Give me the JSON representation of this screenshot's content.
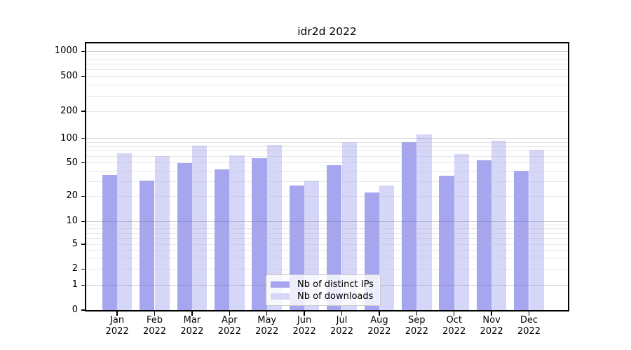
{
  "figure": {
    "background": "#ffffff"
  },
  "chart_data": {
    "type": "bar",
    "title": "idr2d 2022",
    "categories": [
      "Jan",
      "Feb",
      "Mar",
      "Apr",
      "May",
      "Jun",
      "Jul",
      "Aug",
      "Sep",
      "Oct",
      "Nov",
      "Dec"
    ],
    "x_year_label": "2022",
    "series": [
      {
        "name": "Nb of distinct IPs",
        "color": "#a5a5f0",
        "values": [
          36,
          31,
          50,
          42,
          57,
          27,
          47,
          22,
          90,
          35,
          54,
          40
        ]
      },
      {
        "name": "Nb of downloads",
        "color": "#d6d6f8",
        "values": [
          66,
          61,
          81,
          62,
          83,
          31,
          91,
          27,
          110,
          65,
          93,
          73
        ]
      }
    ],
    "y_axis": {
      "scale": "symlog",
      "ticks": [
        0,
        1,
        2,
        5,
        10,
        20,
        50,
        100,
        200,
        500,
        1000
      ],
      "range_top": 1250
    },
    "grid": {
      "shown": true,
      "major_color": "#d0d0d0",
      "minor_color": "#e6e6e6"
    },
    "legend": {
      "position": "lower center",
      "background": "rgba(255,255,255,0.8)",
      "border_color": "#cccccc"
    }
  }
}
